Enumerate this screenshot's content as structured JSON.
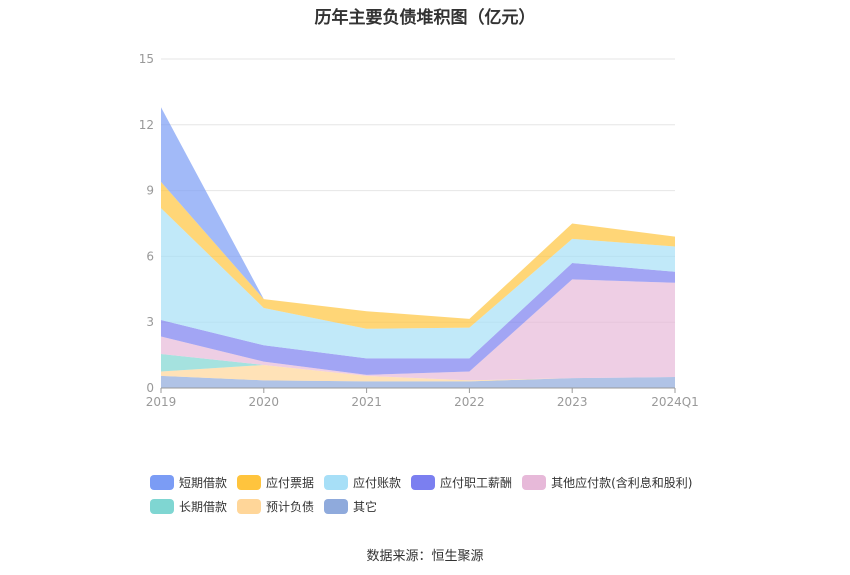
{
  "chart_data": {
    "type": "area",
    "stacked": true,
    "title": "历年主要负债堆积图（亿元）",
    "categories": [
      "2019",
      "2020",
      "2021",
      "2022",
      "2023",
      "2024Q1"
    ],
    "ylim": [
      0,
      15
    ],
    "yticks": [
      "0",
      "3",
      "6",
      "9",
      "12",
      "15"
    ],
    "grid": true,
    "legend_position": "bottom",
    "series": [
      {
        "name": "其它",
        "color": "#8faadc",
        "values": [
          0.55,
          0.35,
          0.3,
          0.3,
          0.45,
          0.5
        ]
      },
      {
        "name": "预计负债",
        "color": "#ffd699",
        "values": [
          0.2,
          0.7,
          0.25,
          0.05,
          0.0,
          0.0
        ]
      },
      {
        "name": "长期借款",
        "color": "#7fd6d2",
        "values": [
          0.8,
          0.0,
          0.0,
          0.0,
          0.0,
          0.0
        ]
      },
      {
        "name": "其他应付款(含利息和股利)",
        "color": "#e7b9d9",
        "values": [
          0.8,
          0.15,
          0.05,
          0.4,
          4.5,
          4.3
        ]
      },
      {
        "name": "应付职工薪酬",
        "color": "#7b7ff0",
        "values": [
          0.75,
          0.75,
          0.75,
          0.6,
          0.75,
          0.5
        ]
      },
      {
        "name": "应付账款",
        "color": "#a7dff7",
        "values": [
          5.1,
          1.7,
          1.35,
          1.4,
          1.1,
          1.15
        ]
      },
      {
        "name": "应付票据",
        "color": "#ffc43d",
        "values": [
          1.2,
          0.4,
          0.8,
          0.4,
          0.7,
          0.45
        ]
      },
      {
        "name": "短期借款",
        "color": "#7b9cf5",
        "values": [
          3.4,
          0.0,
          0.0,
          0.0,
          0.0,
          0.0
        ]
      }
    ]
  },
  "legend": {
    "row1": [
      {
        "name": "短期借款",
        "color": "#7b9cf5"
      },
      {
        "name": "应付票据",
        "color": "#ffc43d"
      },
      {
        "name": "应付账款",
        "color": "#a7dff7"
      },
      {
        "name": "应付职工薪酬",
        "color": "#7b7ff0"
      },
      {
        "name": "其他应付款(含利息和股利)",
        "color": "#e7b9d9"
      }
    ],
    "row2": [
      {
        "name": "长期借款",
        "color": "#7fd6d2"
      },
      {
        "name": "预计负债",
        "color": "#ffd699"
      },
      {
        "name": "其它",
        "color": "#8faadc"
      }
    ]
  },
  "source": "数据来源：恒生聚源"
}
